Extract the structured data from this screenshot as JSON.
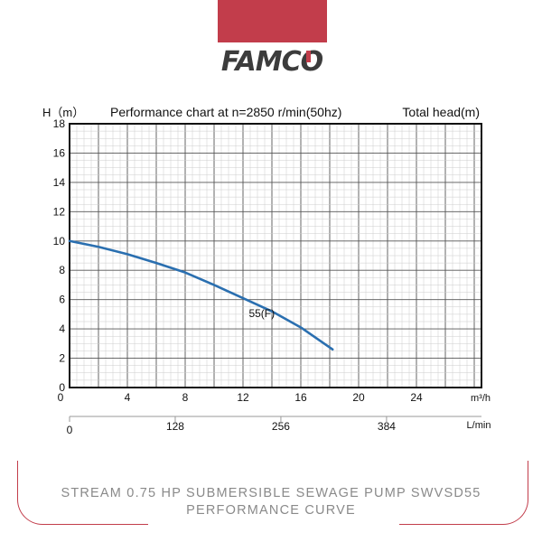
{
  "brand": {
    "name": "FAMCO",
    "accent": "#c23d4b",
    "logo_color": "#3c3c3c"
  },
  "chart_data": {
    "type": "line",
    "title": "Performance chart at n=2850 r/min(50hz)",
    "ylabel": "H（m）",
    "right_label": "Total head(m)",
    "xlabel": "m³/h",
    "x2label": "L/min",
    "xlim": [
      0,
      28.5
    ],
    "ylim": [
      0,
      18
    ],
    "x2lim": [
      0,
      499
    ],
    "xticks": [
      0,
      4,
      8,
      12,
      16,
      20,
      24
    ],
    "yticks": [
      0,
      2,
      4,
      6,
      8,
      10,
      12,
      14,
      16,
      18
    ],
    "x2ticks": [
      0,
      128,
      256,
      384
    ],
    "grid": true,
    "series": [
      {
        "name": "55(F)",
        "color": "#2a6fb0",
        "x": [
          0,
          2,
          4,
          6,
          8,
          10,
          12,
          14,
          16,
          18.2
        ],
        "y": [
          10,
          9.6,
          9.1,
          8.5,
          7.85,
          7.0,
          6.1,
          5.2,
          4.1,
          2.6
        ]
      }
    ]
  },
  "caption": {
    "line1": "STREAM 0.75 HP SUBMERSIBLE SEWAGE PUMP SWVSD55",
    "line2": "PERFORMANCE CURVE"
  }
}
